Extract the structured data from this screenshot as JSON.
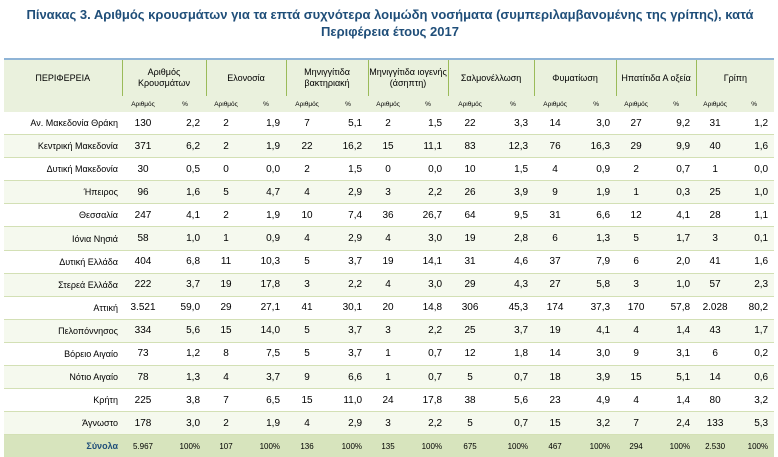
{
  "title": "Πίνακας 3. Αριθμός κρουσμάτων για τα επτά συχνότερα λοιμώδη νοσήματα (συμπεριλαμβανομένης της γρίπης), κατά Περιφέρεια έτους 2017",
  "headers": {
    "region": "ΠΕΡΙΦΕΡΕΙΑ",
    "groups": [
      "Αριθμός Κρουσμάτων",
      "Ελονοσία",
      "Μηνιγγίτιδα βακτηριακή",
      "Μηνιγγίτιδα ιογενής (άσηπτη)",
      "Σαλμονέλλωση",
      "Φυματίωση",
      "Ηπατίτιδα Α οξεία",
      "Γρίπη"
    ],
    "sub_count": "Αριθμός",
    "sub_pct": "%"
  },
  "rows": [
    {
      "region": "Αν. Μακεδονία Θράκη",
      "c": [
        "130",
        "2,2",
        "2",
        "1,9",
        "7",
        "5,1",
        "2",
        "1,5",
        "22",
        "3,3",
        "14",
        "3,0",
        "27",
        "9,2",
        "31",
        "1,2"
      ]
    },
    {
      "region": "Κεντρική Μακεδονία",
      "c": [
        "371",
        "6,2",
        "2",
        "1,9",
        "22",
        "16,2",
        "15",
        "11,1",
        "83",
        "12,3",
        "76",
        "16,3",
        "29",
        "9,9",
        "40",
        "1,6"
      ]
    },
    {
      "region": "Δυτική Μακεδονία",
      "c": [
        "30",
        "0,5",
        "0",
        "0,0",
        "2",
        "1,5",
        "0",
        "0,0",
        "10",
        "1,5",
        "4",
        "0,9",
        "2",
        "0,7",
        "1",
        "0,0"
      ]
    },
    {
      "region": "Ήπειρος",
      "c": [
        "96",
        "1,6",
        "5",
        "4,7",
        "4",
        "2,9",
        "3",
        "2,2",
        "26",
        "3,9",
        "9",
        "1,9",
        "1",
        "0,3",
        "25",
        "1,0"
      ]
    },
    {
      "region": "Θεσσαλία",
      "c": [
        "247",
        "4,1",
        "2",
        "1,9",
        "10",
        "7,4",
        "36",
        "26,7",
        "64",
        "9,5",
        "31",
        "6,6",
        "12",
        "4,1",
        "28",
        "1,1"
      ]
    },
    {
      "region": "Ιόνια Νησιά",
      "c": [
        "58",
        "1,0",
        "1",
        "0,9",
        "4",
        "2,9",
        "4",
        "3,0",
        "19",
        "2,8",
        "6",
        "1,3",
        "5",
        "1,7",
        "3",
        "0,1"
      ]
    },
    {
      "region": "Δυτική Ελλάδα",
      "c": [
        "404",
        "6,8",
        "11",
        "10,3",
        "5",
        "3,7",
        "19",
        "14,1",
        "31",
        "4,6",
        "37",
        "7,9",
        "6",
        "2,0",
        "41",
        "1,6"
      ]
    },
    {
      "region": "Στερεά Ελλάδα",
      "c": [
        "222",
        "3,7",
        "19",
        "17,8",
        "3",
        "2,2",
        "4",
        "3,0",
        "29",
        "4,3",
        "27",
        "5,8",
        "3",
        "1,0",
        "57",
        "2,3"
      ]
    },
    {
      "region": "Αττική",
      "c": [
        "3.521",
        "59,0",
        "29",
        "27,1",
        "41",
        "30,1",
        "20",
        "14,8",
        "306",
        "45,3",
        "174",
        "37,3",
        "170",
        "57,8",
        "2.028",
        "80,2"
      ]
    },
    {
      "region": "Πελοπόννησος",
      "c": [
        "334",
        "5,6",
        "15",
        "14,0",
        "5",
        "3,7",
        "3",
        "2,2",
        "25",
        "3,7",
        "19",
        "4,1",
        "4",
        "1,4",
        "43",
        "1,7"
      ]
    },
    {
      "region": "Βόρειο Αιγαίο",
      "c": [
        "73",
        "1,2",
        "8",
        "7,5",
        "5",
        "3,7",
        "1",
        "0,7",
        "12",
        "1,8",
        "14",
        "3,0",
        "9",
        "3,1",
        "6",
        "0,2"
      ]
    },
    {
      "region": "Νότιο Αιγαίο",
      "c": [
        "78",
        "1,3",
        "4",
        "3,7",
        "9",
        "6,6",
        "1",
        "0,7",
        "5",
        "0,7",
        "18",
        "3,9",
        "15",
        "5,1",
        "14",
        "0,6"
      ]
    },
    {
      "region": "Κρήτη",
      "c": [
        "225",
        "3,8",
        "7",
        "6,5",
        "15",
        "11,0",
        "24",
        "17,8",
        "38",
        "5,6",
        "23",
        "4,9",
        "4",
        "1,4",
        "80",
        "3,2"
      ]
    },
    {
      "region": "Άγνωστο",
      "c": [
        "178",
        "3,0",
        "2",
        "1,9",
        "4",
        "2,9",
        "3",
        "2,2",
        "5",
        "0,7",
        "15",
        "3,2",
        "7",
        "2,4",
        "133",
        "5,3"
      ]
    },
    {
      "region": "Σύνολα",
      "c": [
        "5.967",
        "100%",
        "107",
        "100%",
        "136",
        "100%",
        "135",
        "100%",
        "675",
        "100%",
        "467",
        "100%",
        "294",
        "100%",
        "2.530",
        "100%"
      ]
    }
  ]
}
